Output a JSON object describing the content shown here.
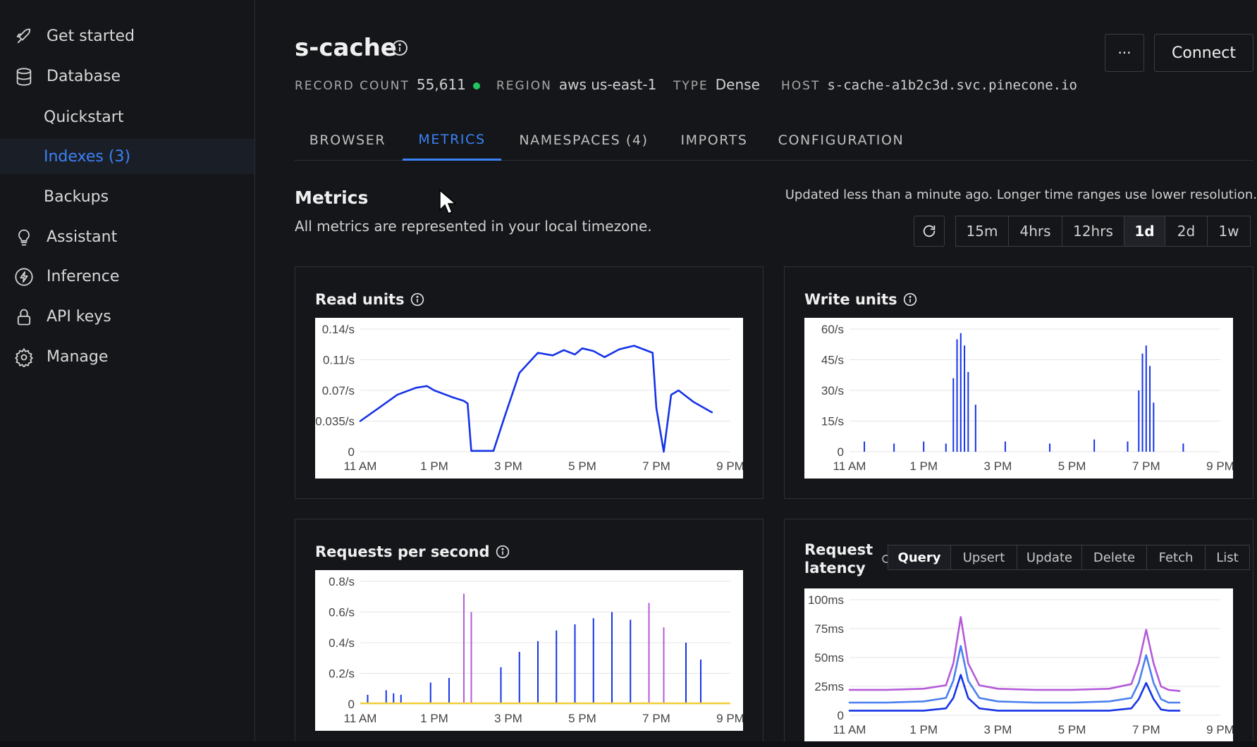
{
  "sidebar": {
    "items": [
      {
        "label": "Get started",
        "icon": "rocket-icon"
      },
      {
        "label": "Database",
        "icon": "database-icon"
      },
      {
        "label": "Quickstart"
      },
      {
        "label": "Indexes (3)"
      },
      {
        "label": "Backups"
      },
      {
        "label": "Assistant",
        "icon": "lightbulb-icon"
      },
      {
        "label": "Inference",
        "icon": "bolt-icon"
      },
      {
        "label": "API keys",
        "icon": "lock-icon"
      },
      {
        "label": "Manage",
        "icon": "gear-icon"
      }
    ]
  },
  "header": {
    "title": "s-cache",
    "record_count_label": "RECORD COUNT",
    "record_count": "55,611",
    "region_label": "REGION",
    "region": "aws us-east-1",
    "type_label": "TYPE",
    "type": "Dense",
    "host_label": "HOST",
    "host": "s-cache-a1b2c3d.svc.pinecone.io",
    "more_label": "···",
    "connect_label": "Connect"
  },
  "tabs": [
    {
      "label": "BROWSER"
    },
    {
      "label": "METRICS",
      "active": true
    },
    {
      "label": "NAMESPACES (4)"
    },
    {
      "label": "IMPORTS"
    },
    {
      "label": "CONFIGURATION"
    }
  ],
  "metrics": {
    "title": "Metrics",
    "subtitle": "All metrics are represented in your local timezone.",
    "updated": "Updated less than a minute ago. Longer time ranges use lower resolution.",
    "ranges": [
      "15m",
      "4hrs",
      "12hrs",
      "1d",
      "2d",
      "1w"
    ],
    "active_range": "1d"
  },
  "cards": {
    "read_units": {
      "title": "Read units"
    },
    "write_units": {
      "title": "Write units"
    },
    "rps": {
      "title": "Requests per second"
    },
    "latency": {
      "title_line1": "Request",
      "title_line2": "latency",
      "ops": [
        "Query",
        "Upsert",
        "Update",
        "Delete",
        "Fetch",
        "List"
      ],
      "active_op": "Query"
    }
  },
  "colors": {
    "accent": "#3b82f6",
    "read_line": "#1533e8",
    "purple": "#b45ad8",
    "yellow": "#f1cf3a",
    "green_dot": "#22c55e"
  },
  "chart_data": [
    {
      "type": "line",
      "title": "Read units",
      "x_ticks": [
        "11 AM",
        "1 PM",
        "3 PM",
        "5 PM",
        "7 PM",
        "9 PM"
      ],
      "y_ticks": [
        "0",
        "0.035/s",
        "0.07/s",
        "0.11/s",
        "0.14/s"
      ],
      "ylim": [
        0,
        0.14
      ],
      "x": [
        11.0,
        11.5,
        12.0,
        12.5,
        12.8,
        13.0,
        13.5,
        13.8,
        13.9,
        14.0,
        14.3,
        14.6,
        14.9,
        15.3,
        15.8,
        16.2,
        16.5,
        16.8,
        17.0,
        17.3,
        17.6,
        18.0,
        18.4,
        18.9,
        19.0,
        19.2,
        19.4,
        19.6,
        20.0,
        20.5
      ],
      "series": [
        {
          "values": [
            0.035,
            0.05,
            0.065,
            0.073,
            0.075,
            0.07,
            0.062,
            0.058,
            0.055,
            0.001,
            0.001,
            0.001,
            0.04,
            0.09,
            0.113,
            0.11,
            0.116,
            0.111,
            0.118,
            0.115,
            0.108,
            0.117,
            0.121,
            0.113,
            0.05,
            0.0,
            0.065,
            0.07,
            0.057,
            0.045
          ]
        }
      ]
    },
    {
      "type": "bar",
      "title": "Write units",
      "x_ticks": [
        "11 AM",
        "1 PM",
        "3 PM",
        "5 PM",
        "7 PM",
        "9 PM"
      ],
      "y_ticks": [
        "0",
        "15/s",
        "30/s",
        "45/s",
        "60/s"
      ],
      "ylim": [
        0,
        60
      ],
      "x": [
        11.4,
        12.2,
        13.0,
        13.6,
        13.8,
        13.9,
        14.0,
        14.1,
        14.2,
        14.4,
        15.2,
        16.4,
        17.6,
        18.5,
        18.8,
        18.9,
        19.0,
        19.1,
        19.2,
        20.0
      ],
      "series": [
        {
          "values": [
            5,
            4,
            5,
            4,
            36,
            55,
            58,
            52,
            39,
            23,
            5,
            4,
            6,
            5,
            30,
            48,
            52,
            42,
            24,
            4
          ]
        }
      ]
    },
    {
      "type": "bar",
      "title": "Requests per second",
      "x_ticks": [
        "11 AM",
        "1 PM",
        "3 PM",
        "5 PM",
        "7 PM",
        "9 PM"
      ],
      "y_ticks": [
        "0",
        "0.2/s",
        "0.4/s",
        "0.6/s",
        "0.8/s"
      ],
      "ylim": [
        0,
        0.8
      ],
      "x": [
        11.2,
        11.7,
        11.9,
        12.1,
        12.9,
        13.4,
        13.8,
        14.0,
        14.3,
        14.8,
        15.3,
        15.8,
        16.3,
        16.8,
        17.3,
        17.8,
        18.3,
        18.8,
        19.2,
        19.4,
        19.8,
        20.0,
        20.2
      ],
      "series": [
        {
          "values": [
            0.06,
            0.09,
            0.07,
            0.06,
            0.14,
            0.17,
            0.0,
            0.0,
            0.0,
            0.24,
            0.34,
            0.41,
            0.48,
            0.52,
            0.56,
            0.6,
            0.55,
            0.0,
            0.0,
            0.0,
            0.4,
            0.0,
            0.29
          ]
        },
        {
          "values": [
            0.0,
            0.0,
            0.0,
            0.0,
            0.0,
            0.0,
            0.72,
            0.6,
            0.0,
            0.0,
            0.0,
            0.0,
            0.0,
            0.0,
            0.0,
            0.0,
            0.0,
            0.66,
            0.5,
            0.0,
            0.0,
            0.0,
            0.0
          ]
        },
        {
          "values": [
            0.0,
            0.0,
            0.0,
            0.0,
            0.0,
            0.0,
            0.0,
            0.0,
            0.0,
            0.0,
            0.0,
            0.0,
            0.0,
            0.0,
            0.0,
            0.0,
            0.0,
            0.0,
            0.0,
            0.0,
            0.0,
            0.01,
            0.0
          ]
        }
      ]
    },
    {
      "type": "line",
      "title": "Request latency",
      "x_ticks": [
        "11 AM",
        "1 PM",
        "3 PM",
        "5 PM",
        "7 PM",
        "9 PM"
      ],
      "y_ticks": [
        "0",
        "25ms",
        "50ms",
        "75ms",
        "100ms"
      ],
      "ylim": [
        0,
        100
      ],
      "x": [
        11.0,
        12.0,
        13.0,
        13.6,
        13.8,
        14.0,
        14.2,
        14.5,
        15.0,
        16.0,
        17.0,
        18.0,
        18.6,
        18.8,
        19.0,
        19.2,
        19.4,
        19.6,
        19.9
      ],
      "series": [
        {
          "values": [
            22,
            22,
            23,
            26,
            45,
            85,
            45,
            26,
            23,
            22,
            22,
            23,
            27,
            45,
            74,
            45,
            25,
            22,
            21
          ]
        },
        {
          "values": [
            11,
            11,
            12,
            15,
            30,
            60,
            30,
            15,
            12,
            11,
            11,
            12,
            15,
            28,
            52,
            28,
            14,
            11,
            11
          ]
        },
        {
          "values": [
            4,
            4,
            4,
            6,
            15,
            35,
            15,
            6,
            4,
            4,
            4,
            4,
            6,
            14,
            28,
            14,
            5,
            4,
            4
          ]
        }
      ]
    }
  ]
}
